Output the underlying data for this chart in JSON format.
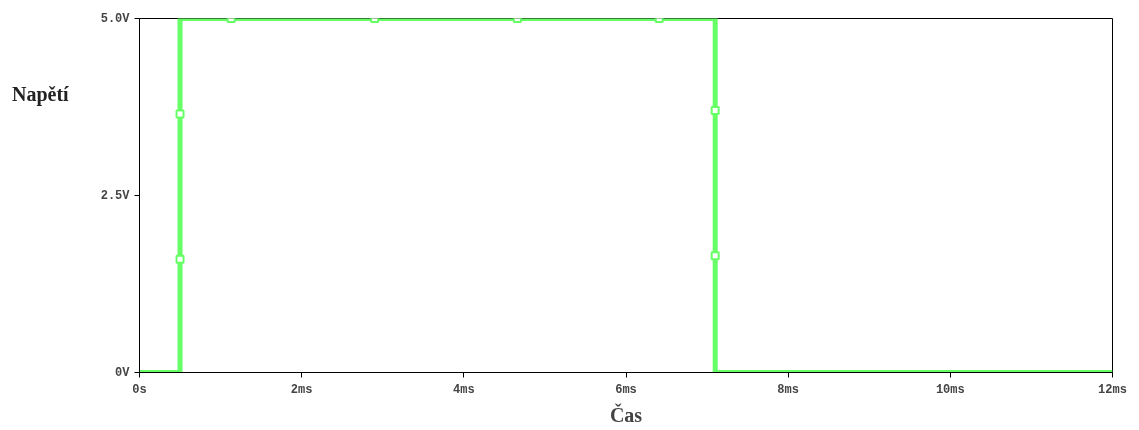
{
  "chart_data": {
    "type": "line",
    "xlabel": "Čas",
    "ylabel": "Napětí",
    "xlim": [
      0,
      12
    ],
    "ylim": [
      0,
      5
    ],
    "xticks": [
      {
        "value": 0,
        "label": "0s"
      },
      {
        "value": 2,
        "label": "2ms"
      },
      {
        "value": 4,
        "label": "4ms"
      },
      {
        "value": 6,
        "label": "6ms"
      },
      {
        "value": 8,
        "label": "8ms"
      },
      {
        "value": 10,
        "label": "10ms"
      },
      {
        "value": 12,
        "label": "12ms"
      }
    ],
    "yticks": [
      {
        "value": 0,
        "label": "0V"
      },
      {
        "value": 2.5,
        "label": "2.5V"
      },
      {
        "value": 5,
        "label": "5.0V"
      }
    ],
    "grid": false,
    "line_style": "solid",
    "series": [
      {
        "marker": "none",
        "color": "#66ff66",
        "x": [
          0,
          0.5,
          0.5,
          7.1,
          7.1,
          12
        ],
        "values": [
          0,
          0,
          5,
          5,
          0,
          0
        ]
      },
      {
        "type": "scatter",
        "marker": "square",
        "color": "#66ff66",
        "x": [
          0.5,
          0.5,
          1.13,
          2.9,
          4.66,
          6.41,
          7.1,
          7.1
        ],
        "values": [
          1.6,
          3.65,
          5,
          5,
          5,
          5,
          3.7,
          1.65
        ]
      }
    ]
  }
}
